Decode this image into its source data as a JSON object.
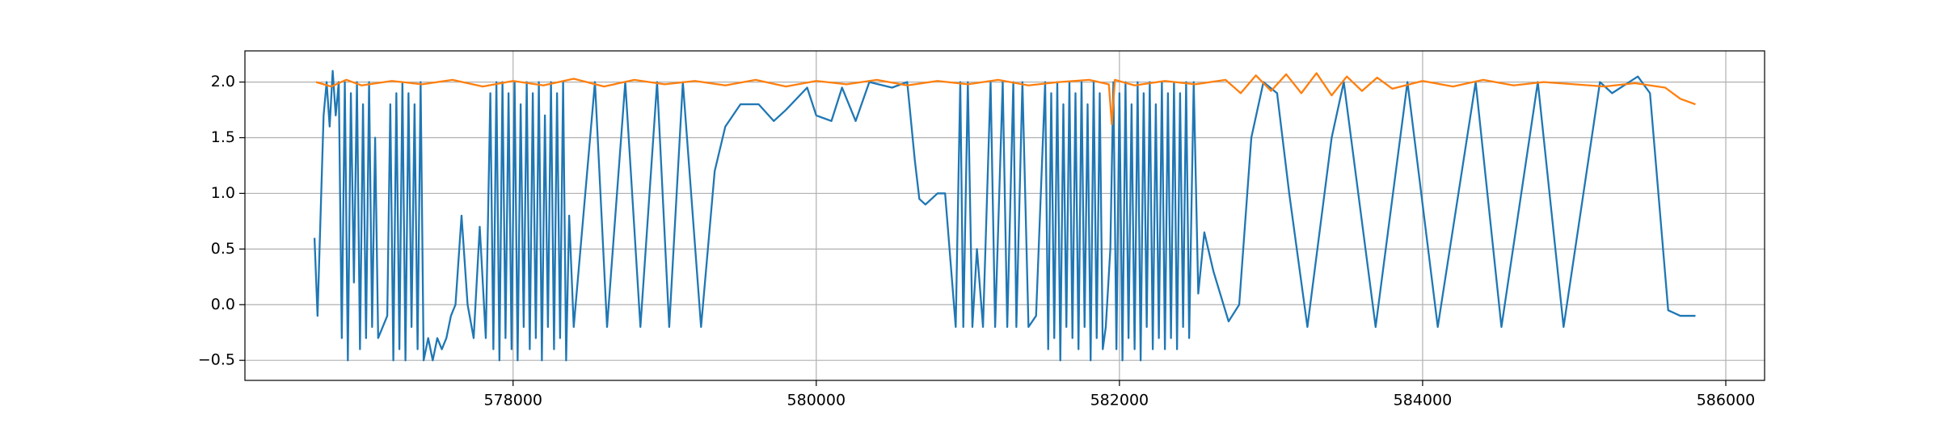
{
  "chart_data": {
    "type": "line",
    "xlim": [
      576231,
      586256
    ],
    "ylim": [
      -0.68,
      2.28
    ],
    "xticks": [
      578000,
      580000,
      582000,
      584000,
      586000
    ],
    "yticks": [
      {
        "value": -0.5,
        "label": "−0.5"
      },
      {
        "value": 0,
        "label": "0.0"
      },
      0.5,
      {
        "value": 1,
        "label": "1.0"
      },
      1.5,
      {
        "value": 2,
        "label": "2.0"
      }
    ],
    "grid": true,
    "series": [
      {
        "color": "#1f77b4",
        "x": [
          576690,
          576710,
          576750,
          576770,
          576790,
          576810,
          576830,
          576850,
          576870,
          576890,
          576910,
          576930,
          576950,
          576970,
          576990,
          577010,
          577030,
          577050,
          577070,
          577090,
          577110,
          577140,
          577170,
          577190,
          577210,
          577230,
          577250,
          577270,
          577290,
          577310,
          577330,
          577350,
          577370,
          577390,
          577410,
          577440,
          577470,
          577500,
          577530,
          577560,
          577590,
          577620,
          577660,
          577700,
          577740,
          577780,
          577820,
          577850,
          577870,
          577890,
          577910,
          577930,
          577950,
          577970,
          577990,
          578010,
          578030,
          578050,
          578070,
          578090,
          578110,
          578130,
          578150,
          578170,
          578190,
          578210,
          578230,
          578250,
          578270,
          578290,
          578310,
          578330,
          578350,
          578370,
          578400,
          578540,
          578620,
          578740,
          578840,
          578950,
          579030,
          579120,
          579240,
          579330,
          579400,
          579500,
          579620,
          579720,
          579800,
          579940,
          580000,
          580100,
          580170,
          580260,
          580350,
          580500,
          580600,
          580650,
          580680,
          580720,
          580800,
          580850,
          580920,
          580950,
          580970,
          581000,
          581030,
          581060,
          581100,
          581150,
          581180,
          581230,
          581260,
          581300,
          581320,
          581360,
          581400,
          581450,
          581510,
          581530,
          581550,
          581570,
          581590,
          581610,
          581630,
          581650,
          581670,
          581690,
          581710,
          581730,
          581750,
          581770,
          581790,
          581810,
          581830,
          581850,
          581870,
          581890,
          581910,
          581940,
          581960,
          581980,
          582000,
          582020,
          582040,
          582060,
          582080,
          582100,
          582120,
          582140,
          582160,
          582180,
          582200,
          582220,
          582240,
          582260,
          582280,
          582300,
          582320,
          582340,
          582360,
          582380,
          582400,
          582420,
          582440,
          582460,
          582490,
          582520,
          582560,
          582620,
          582720,
          582790,
          582870,
          582950,
          583040,
          583120,
          583240,
          583400,
          583480,
          583690,
          583900,
          584100,
          584350,
          584520,
          584760,
          584930,
          585170,
          585250,
          585420,
          585500,
          585620,
          585700,
          585800
        ],
        "values": [
          0.6,
          -0.1,
          1.7,
          2.0,
          1.6,
          2.1,
          1.7,
          2.0,
          -0.3,
          2.0,
          -0.5,
          1.9,
          0.2,
          2.0,
          -0.4,
          1.8,
          -0.3,
          2.0,
          -0.2,
          1.5,
          -0.3,
          -0.2,
          -0.1,
          1.8,
          -0.5,
          1.9,
          -0.4,
          2.0,
          -0.5,
          1.9,
          -0.2,
          1.8,
          -0.4,
          2.0,
          -0.5,
          -0.3,
          -0.5,
          -0.3,
          -0.4,
          -0.3,
          -0.1,
          0.0,
          0.8,
          0.0,
          -0.3,
          0.7,
          -0.3,
          1.9,
          -0.4,
          2.0,
          -0.5,
          2.0,
          -0.3,
          1.9,
          -0.4,
          2.0,
          -0.5,
          1.8,
          -0.2,
          2.0,
          -0.4,
          1.9,
          -0.3,
          2.0,
          -0.5,
          1.7,
          -0.2,
          2.0,
          -0.4,
          1.9,
          -0.3,
          2.0,
          -0.5,
          0.8,
          -0.2,
          2.0,
          -0.2,
          2.0,
          -0.2,
          2.0,
          -0.2,
          2.0,
          -0.2,
          1.2,
          1.6,
          1.8,
          1.8,
          1.65,
          1.75,
          1.95,
          1.7,
          1.65,
          1.95,
          1.65,
          2.0,
          1.95,
          2.0,
          1.3,
          0.95,
          0.9,
          1.0,
          1.0,
          -0.2,
          2.0,
          -0.2,
          2.0,
          -0.2,
          0.5,
          -0.2,
          2.0,
          -0.2,
          2.0,
          -0.2,
          2.0,
          -0.2,
          2.0,
          -0.2,
          -0.1,
          2.0,
          -0.4,
          1.9,
          -0.3,
          2.0,
          -0.5,
          1.8,
          -0.2,
          2.0,
          -0.3,
          1.9,
          -0.4,
          2.0,
          -0.2,
          1.8,
          -0.5,
          2.0,
          -0.3,
          1.9,
          -0.4,
          -0.2,
          0.5,
          2.0,
          -0.4,
          1.9,
          -0.5,
          2.0,
          -0.3,
          1.8,
          -0.4,
          2.0,
          -0.5,
          1.9,
          -0.2,
          2.0,
          -0.4,
          1.8,
          -0.3,
          2.0,
          -0.4,
          1.9,
          -0.3,
          2.0,
          -0.4,
          1.9,
          -0.2,
          2.0,
          -0.3,
          2.0,
          0.1,
          0.65,
          0.3,
          -0.15,
          0.0,
          1.5,
          2.0,
          1.9,
          1.0,
          -0.2,
          1.5,
          2.0,
          -0.2,
          2.0,
          -0.2,
          2.0,
          -0.2,
          2.0,
          -0.2,
          2.0,
          1.9,
          2.05,
          1.9,
          -0.05,
          -0.1,
          -0.1
        ]
      },
      {
        "color": "#ff7f0e",
        "x": [
          576700,
          576800,
          576900,
          577000,
          577200,
          577400,
          577600,
          577800,
          578000,
          578200,
          578400,
          578600,
          578800,
          579000,
          579200,
          579400,
          579600,
          579800,
          580000,
          580200,
          580400,
          580600,
          580800,
          581000,
          581200,
          581400,
          581600,
          581800,
          581930,
          581950,
          581970,
          582100,
          582300,
          582500,
          582700,
          582800,
          582900,
          583000,
          583100,
          583200,
          583300,
          583400,
          583500,
          583600,
          583700,
          583800,
          584000,
          584200,
          584400,
          584600,
          584800,
          585000,
          585200,
          585400,
          585600,
          585700,
          585800
        ],
        "values": [
          2.0,
          1.96,
          2.02,
          1.97,
          2.01,
          1.98,
          2.02,
          1.96,
          2.01,
          1.97,
          2.03,
          1.96,
          2.02,
          1.98,
          2.01,
          1.97,
          2.02,
          1.96,
          2.01,
          1.98,
          2.02,
          1.97,
          2.01,
          1.98,
          2.02,
          1.97,
          2.0,
          2.02,
          1.98,
          1.62,
          2.02,
          1.97,
          2.01,
          1.98,
          2.02,
          1.9,
          2.06,
          1.92,
          2.07,
          1.9,
          2.08,
          1.88,
          2.05,
          1.92,
          2.04,
          1.94,
          2.01,
          1.96,
          2.02,
          1.97,
          2.0,
          1.98,
          1.96,
          1.99,
          1.95,
          1.85,
          1.8
        ]
      }
    ]
  }
}
